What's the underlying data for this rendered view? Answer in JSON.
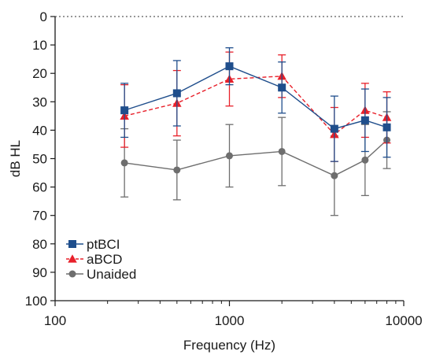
{
  "chart_data": {
    "type": "line",
    "xlabel": "Frequency (Hz)",
    "ylabel": "dB HL",
    "x_scale": "log",
    "xlim": [
      100,
      10000
    ],
    "ylim": [
      0,
      100
    ],
    "y_inverted": true,
    "x_ticks": [
      100,
      1000,
      10000
    ],
    "x_tick_labels": [
      "100",
      "1000",
      "10000"
    ],
    "y_ticks": [
      0,
      10,
      20,
      30,
      40,
      50,
      60,
      70,
      80,
      90,
      100
    ],
    "y_tick_labels": [
      "0",
      "10",
      "20",
      "30",
      "40",
      "50",
      "60",
      "70",
      "80",
      "90",
      "100"
    ],
    "reference_line_y": 0,
    "legend_position": "bottom-left",
    "x": [
      250,
      500,
      1000,
      2000,
      4000,
      6000,
      8000
    ],
    "series": [
      {
        "name": "ptBCI",
        "color": "#1f4e8c",
        "marker": "square",
        "line_style": "solid",
        "values": [
          33,
          27,
          17.5,
          25,
          39.5,
          36.5,
          39
        ],
        "error": [
          9.5,
          11.5,
          6.5,
          9,
          11.5,
          11,
          10.5
        ]
      },
      {
        "name": "aBCD",
        "color": "#e8202a",
        "marker": "triangle",
        "line_style": "dashed",
        "values": [
          35,
          30.5,
          22,
          21,
          41.5,
          33,
          35.5
        ],
        "error": [
          11,
          11.5,
          9.5,
          7.5,
          9.5,
          9.5,
          9
        ]
      },
      {
        "name": "Unaided",
        "color": "#6e6e6e",
        "marker": "circle",
        "line_style": "solid",
        "values": [
          51.5,
          54,
          49,
          47.5,
          56,
          50.5,
          43.5
        ],
        "error": [
          12,
          10.5,
          11,
          12,
          14,
          12.5,
          10
        ]
      }
    ]
  }
}
